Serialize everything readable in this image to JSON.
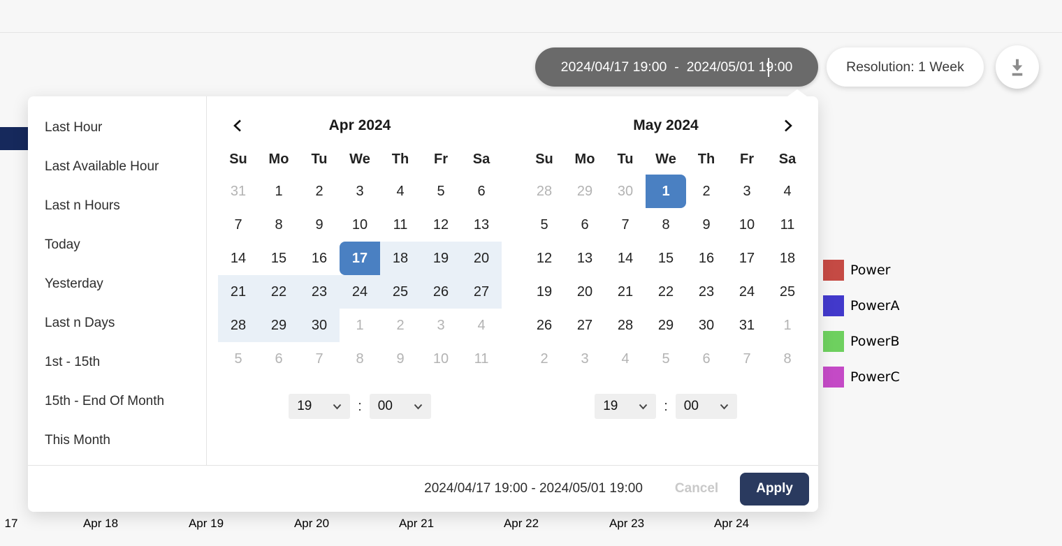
{
  "toolbar": {
    "date_range_value": "2024/04/17 19:00  -  2024/05/01 19:00",
    "resolution_label": "Resolution: 1 Week"
  },
  "presets": {
    "items": [
      "Last Hour",
      "Last Available Hour",
      "Last n Hours",
      "Today",
      "Yesterday",
      "Last n Days",
      "1st - 15th",
      "15th - End Of Month",
      "This Month"
    ]
  },
  "calendar": {
    "day_headers": [
      "Su",
      "Mo",
      "Tu",
      "We",
      "Th",
      "Fr",
      "Sa"
    ],
    "time_separator": ":",
    "months": [
      {
        "title": "Apr 2024",
        "hour": "19",
        "minute": "00",
        "weeks": [
          [
            {
              "d": "31",
              "muted": true
            },
            {
              "d": "1"
            },
            {
              "d": "2"
            },
            {
              "d": "3"
            },
            {
              "d": "4"
            },
            {
              "d": "5"
            },
            {
              "d": "6"
            }
          ],
          [
            {
              "d": "7"
            },
            {
              "d": "8"
            },
            {
              "d": "9"
            },
            {
              "d": "10"
            },
            {
              "d": "11"
            },
            {
              "d": "12"
            },
            {
              "d": "13"
            }
          ],
          [
            {
              "d": "14"
            },
            {
              "d": "15"
            },
            {
              "d": "16"
            },
            {
              "d": "17",
              "state": "selected-start"
            },
            {
              "d": "18",
              "state": "range"
            },
            {
              "d": "19",
              "state": "range"
            },
            {
              "d": "20",
              "state": "range"
            }
          ],
          [
            {
              "d": "21",
              "state": "range"
            },
            {
              "d": "22",
              "state": "range"
            },
            {
              "d": "23",
              "state": "range"
            },
            {
              "d": "24",
              "state": "range"
            },
            {
              "d": "25",
              "state": "range"
            },
            {
              "d": "26",
              "state": "range"
            },
            {
              "d": "27",
              "state": "range"
            }
          ],
          [
            {
              "d": "28",
              "state": "range"
            },
            {
              "d": "29",
              "state": "range"
            },
            {
              "d": "30",
              "state": "range"
            },
            {
              "d": "1",
              "muted": true
            },
            {
              "d": "2",
              "muted": true
            },
            {
              "d": "3",
              "muted": true
            },
            {
              "d": "4",
              "muted": true
            }
          ],
          [
            {
              "d": "5",
              "muted": true
            },
            {
              "d": "6",
              "muted": true
            },
            {
              "d": "7",
              "muted": true
            },
            {
              "d": "8",
              "muted": true
            },
            {
              "d": "9",
              "muted": true
            },
            {
              "d": "10",
              "muted": true
            },
            {
              "d": "11",
              "muted": true
            }
          ]
        ]
      },
      {
        "title": "May 2024",
        "hour": "19",
        "minute": "00",
        "weeks": [
          [
            {
              "d": "28",
              "muted": true
            },
            {
              "d": "29",
              "muted": true
            },
            {
              "d": "30",
              "muted": true
            },
            {
              "d": "1",
              "state": "selected-end"
            },
            {
              "d": "2"
            },
            {
              "d": "3"
            },
            {
              "d": "4"
            }
          ],
          [
            {
              "d": "5"
            },
            {
              "d": "6"
            },
            {
              "d": "7"
            },
            {
              "d": "8"
            },
            {
              "d": "9"
            },
            {
              "d": "10"
            },
            {
              "d": "11"
            }
          ],
          [
            {
              "d": "12"
            },
            {
              "d": "13"
            },
            {
              "d": "14"
            },
            {
              "d": "15"
            },
            {
              "d": "16"
            },
            {
              "d": "17"
            },
            {
              "d": "18"
            }
          ],
          [
            {
              "d": "19"
            },
            {
              "d": "20"
            },
            {
              "d": "21"
            },
            {
              "d": "22"
            },
            {
              "d": "23"
            },
            {
              "d": "24"
            },
            {
              "d": "25"
            }
          ],
          [
            {
              "d": "26"
            },
            {
              "d": "27"
            },
            {
              "d": "28"
            },
            {
              "d": "29"
            },
            {
              "d": "30"
            },
            {
              "d": "31"
            },
            {
              "d": "1",
              "muted": true
            }
          ],
          [
            {
              "d": "2",
              "muted": true
            },
            {
              "d": "3",
              "muted": true
            },
            {
              "d": "4",
              "muted": true
            },
            {
              "d": "5",
              "muted": true
            },
            {
              "d": "6",
              "muted": true
            },
            {
              "d": "7",
              "muted": true
            },
            {
              "d": "8",
              "muted": true
            }
          ]
        ]
      }
    ]
  },
  "footer": {
    "range_text": "2024/04/17 19:00 - 2024/05/01 19:00",
    "cancel_label": "Cancel",
    "apply_label": "Apply"
  },
  "chart": {
    "x_axis_labels": [
      "17",
      "Apr 18",
      "Apr 19",
      "Apr 20",
      "Apr 21",
      "Apr 22",
      "Apr 23",
      "Apr 24"
    ],
    "legend": [
      {
        "label": "Power",
        "color": "#c54a44"
      },
      {
        "label": "PowerA",
        "color": "#4239cb"
      },
      {
        "label": "PowerB",
        "color": "#6ed05f"
      },
      {
        "label": "PowerC",
        "color": "#c44ac6"
      }
    ]
  },
  "colors": {
    "selected_day": "#4a80c2",
    "range_highlight": "#e9f0f7",
    "apply_button": "#2a3a5f",
    "pill_background": "#6a6a6a",
    "left_bar": "#16295c",
    "page_background": "#f7f7f7"
  }
}
